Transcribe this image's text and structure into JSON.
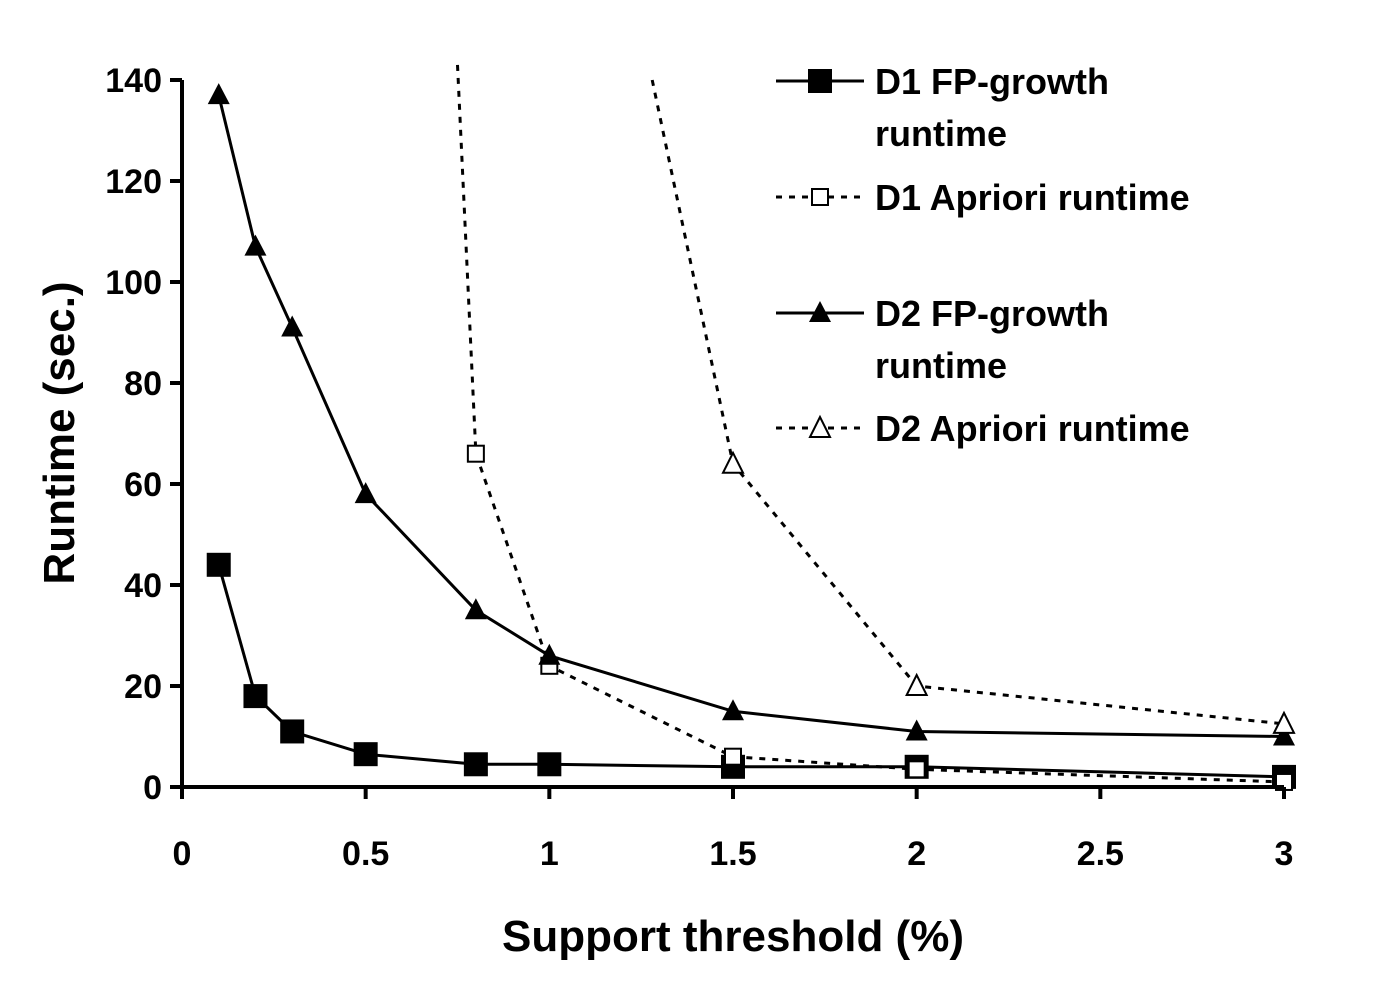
{
  "chart_data": {
    "type": "line",
    "title": "",
    "xlabel": "Support threshold (%)",
    "ylabel": "Runtime (sec.)",
    "xlim": [
      0,
      3
    ],
    "ylim": [
      0,
      140
    ],
    "x_ticks": [
      "0",
      "0.5",
      "1",
      "1.5",
      "2",
      "2.5",
      "3"
    ],
    "y_ticks": [
      "0",
      "20",
      "40",
      "60",
      "80",
      "100",
      "120",
      "140"
    ],
    "grid": false,
    "legend_position": "top-right",
    "series": [
      {
        "name": "D1 FP-growth runtime",
        "legend_lines": [
          "D1 FP-growth",
          "runtime"
        ],
        "style": "solid",
        "marker": "filled-square",
        "color": "#000000",
        "x": [
          0.1,
          0.2,
          0.3,
          0.5,
          0.8,
          1,
          1.5,
          2,
          3
        ],
        "y": [
          44,
          18,
          11,
          6.5,
          4.5,
          4.5,
          4,
          4,
          2
        ]
      },
      {
        "name": "D1 Apriori runtime",
        "legend_lines": [
          "D1 Apriori runtime"
        ],
        "style": "dotted",
        "marker": "open-square",
        "color": "#000000",
        "x": [
          0.75,
          0.8,
          1,
          1.5,
          2,
          3
        ],
        "y": [
          143,
          66,
          24,
          6,
          3.5,
          1
        ]
      },
      {
        "name": "D2 FP-growth runtime",
        "legend_lines": [
          "D2 FP-growth",
          "runtime"
        ],
        "style": "solid",
        "marker": "filled-triangle",
        "color": "#000000",
        "x": [
          0.1,
          0.2,
          0.3,
          0.5,
          0.8,
          1,
          1.5,
          2,
          3
        ],
        "y": [
          137,
          107,
          91,
          58,
          35,
          26,
          15,
          11,
          10
        ]
      },
      {
        "name": "D2 Apriori runtime",
        "legend_lines": [
          "D2 Apriori runtime"
        ],
        "style": "dotted",
        "marker": "open-triangle",
        "color": "#000000",
        "x": [
          1.28,
          1.5,
          2,
          3
        ],
        "y": [
          140,
          64,
          20,
          12.5
        ]
      }
    ]
  }
}
